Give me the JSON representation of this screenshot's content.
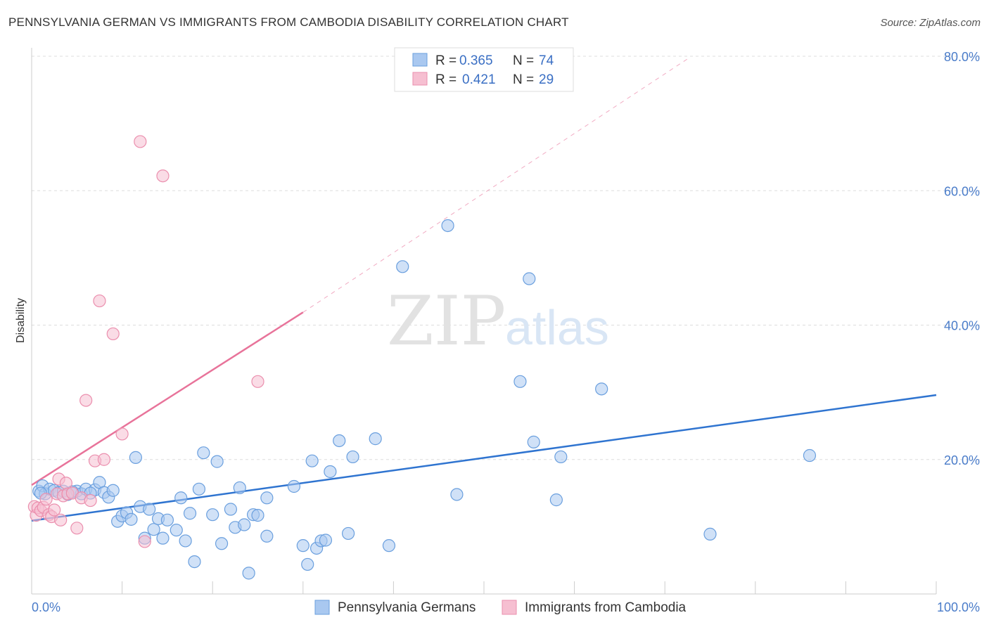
{
  "title": "PENNSYLVANIA GERMAN VS IMMIGRANTS FROM CAMBODIA DISABILITY CORRELATION CHART",
  "source": "Source: ZipAtlas.com",
  "watermark": {
    "part1": "ZIP",
    "part2": "atlas"
  },
  "colors": {
    "blue_fill": "#a9c8f0",
    "blue_stroke": "#6a9fde",
    "blue_line": "#2f74d0",
    "pink_fill": "#f6bfd1",
    "pink_stroke": "#eb8fae",
    "pink_line": "#e8739a",
    "grid": "#dddddd",
    "axis_text": "#4a7cc9"
  },
  "legend": {
    "rows": [
      {
        "r_label": "R =",
        "r_value": "0.365",
        "n_label": "N =",
        "n_value": "74"
      },
      {
        "r_label": "R =",
        "r_value": "0.421",
        "n_label": "N =",
        "n_value": "29"
      }
    ]
  },
  "chart_data": {
    "type": "scatter",
    "title": "PENNSYLVANIA GERMAN VS IMMIGRANTS FROM CAMBODIA DISABILITY CORRELATION CHART",
    "xlabel": "",
    "ylabel": "Disability",
    "xlim": [
      0,
      100
    ],
    "ylim": [
      0,
      80
    ],
    "x_tick_labels": [
      "0.0%",
      "100.0%"
    ],
    "y_ticks": [
      20,
      40,
      60,
      80
    ],
    "y_tick_labels": [
      "20.0%",
      "40.0%",
      "60.0%",
      "80.0%"
    ],
    "grid": true,
    "legend_position": "top-center",
    "series": [
      {
        "name": "Pennsylvania Germans",
        "color": "blue",
        "R": 0.365,
        "N": 74,
        "trend": {
          "x0": 0,
          "y0": 10.9,
          "x1": 100,
          "y1": 29.6
        },
        "points": [
          [
            0.8,
            15.3
          ],
          [
            1.2,
            16.1
          ],
          [
            1.5,
            14.9
          ],
          [
            2.0,
            15.6
          ],
          [
            2.5,
            15.4
          ],
          [
            3.0,
            15.1
          ],
          [
            3.5,
            15.3
          ],
          [
            4.0,
            14.8
          ],
          [
            5.0,
            15.3
          ],
          [
            5.5,
            14.9
          ],
          [
            6.0,
            15.6
          ],
          [
            7.0,
            15.5
          ],
          [
            7.5,
            16.6
          ],
          [
            8.0,
            15.1
          ],
          [
            8.5,
            14.4
          ],
          [
            9.0,
            15.4
          ],
          [
            9.5,
            10.8
          ],
          [
            10.0,
            11.6
          ],
          [
            10.5,
            12.1
          ],
          [
            11.0,
            11.1
          ],
          [
            11.5,
            20.3
          ],
          [
            12.0,
            13.0
          ],
          [
            12.5,
            8.3
          ],
          [
            13.0,
            12.6
          ],
          [
            13.5,
            9.6
          ],
          [
            14.0,
            11.2
          ],
          [
            14.5,
            8.3
          ],
          [
            15.0,
            11.0
          ],
          [
            16.0,
            9.5
          ],
          [
            16.5,
            14.3
          ],
          [
            17.0,
            7.9
          ],
          [
            17.5,
            12.0
          ],
          [
            18.0,
            4.8
          ],
          [
            18.5,
            15.6
          ],
          [
            19.0,
            21.0
          ],
          [
            20.0,
            11.8
          ],
          [
            20.5,
            19.7
          ],
          [
            21.0,
            7.5
          ],
          [
            22.0,
            12.6
          ],
          [
            22.5,
            9.9
          ],
          [
            23.0,
            15.8
          ],
          [
            23.5,
            10.3
          ],
          [
            24.0,
            3.1
          ],
          [
            24.5,
            11.8
          ],
          [
            25.0,
            11.7
          ],
          [
            26.0,
            8.6
          ],
          [
            26.0,
            14.3
          ],
          [
            29.0,
            16.0
          ],
          [
            30.0,
            7.2
          ],
          [
            30.5,
            4.4
          ],
          [
            31.0,
            19.8
          ],
          [
            31.5,
            6.8
          ],
          [
            32.0,
            7.9
          ],
          [
            32.5,
            8.0
          ],
          [
            33.0,
            18.2
          ],
          [
            34.0,
            22.8
          ],
          [
            35.0,
            9.0
          ],
          [
            35.5,
            20.4
          ],
          [
            38.0,
            23.1
          ],
          [
            39.5,
            7.2
          ],
          [
            41.0,
            48.7
          ],
          [
            46.0,
            54.8
          ],
          [
            47.0,
            14.8
          ],
          [
            54.0,
            31.6
          ],
          [
            55.0,
            46.9
          ],
          [
            55.5,
            22.6
          ],
          [
            58.0,
            14.0
          ],
          [
            58.5,
            20.4
          ],
          [
            63.0,
            30.5
          ],
          [
            75.0,
            8.9
          ],
          [
            86.0,
            20.6
          ],
          [
            1.0,
            15.0
          ],
          [
            4.5,
            15.2
          ],
          [
            6.5,
            15.0
          ]
        ]
      },
      {
        "name": "Immigrants from Cambodia",
        "color": "pink",
        "R": 0.421,
        "N": 29,
        "trend": {
          "x0": 0,
          "y0": 16.2,
          "x1": 30,
          "y1": 41.9
        },
        "trend_extension": {
          "x0": 30,
          "y0": 41.9,
          "x1": 72.5,
          "y1": 79.6
        },
        "points": [
          [
            0.3,
            13.0
          ],
          [
            0.5,
            11.7
          ],
          [
            0.7,
            12.8
          ],
          [
            1.0,
            12.4
          ],
          [
            1.3,
            12.9
          ],
          [
            1.6,
            14.1
          ],
          [
            1.9,
            11.8
          ],
          [
            2.2,
            11.5
          ],
          [
            2.5,
            12.5
          ],
          [
            2.8,
            14.9
          ],
          [
            3.0,
            17.1
          ],
          [
            3.2,
            11.0
          ],
          [
            3.5,
            14.6
          ],
          [
            3.8,
            16.5
          ],
          [
            4.0,
            14.9
          ],
          [
            4.5,
            15.0
          ],
          [
            5.0,
            9.8
          ],
          [
            5.5,
            14.3
          ],
          [
            6.0,
            28.8
          ],
          [
            6.5,
            13.9
          ],
          [
            7.0,
            19.8
          ],
          [
            7.5,
            43.6
          ],
          [
            8.0,
            20.0
          ],
          [
            9.0,
            38.7
          ],
          [
            10.0,
            23.8
          ],
          [
            12.0,
            67.3
          ],
          [
            12.5,
            7.8
          ],
          [
            14.5,
            62.2
          ],
          [
            25.0,
            31.6
          ]
        ]
      }
    ]
  },
  "bottom_legend": [
    "Pennsylvania Germans",
    "Immigrants from Cambodia"
  ]
}
